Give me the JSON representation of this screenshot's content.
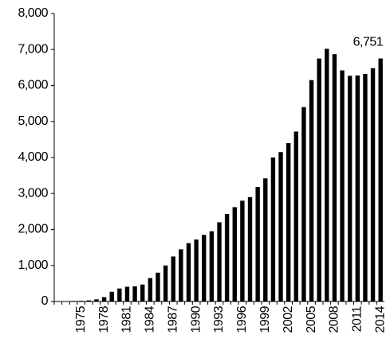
{
  "chart_data": {
    "type": "bar",
    "categories": [
      null,
      null,
      null,
      "1975",
      null,
      null,
      "1978",
      null,
      null,
      "1981",
      null,
      null,
      "1984",
      null,
      null,
      "1987",
      null,
      null,
      "1990",
      null,
      null,
      "1993",
      null,
      null,
      "1996",
      null,
      null,
      "1999",
      null,
      null,
      "2002",
      null,
      null,
      "2005",
      null,
      null,
      "2008",
      null,
      null,
      "2011",
      null,
      null,
      "2014"
    ],
    "values": [
      5,
      10,
      15,
      20,
      30,
      60,
      120,
      270,
      360,
      410,
      420,
      470,
      650,
      800,
      1000,
      1250,
      1450,
      1620,
      1720,
      1850,
      1950,
      2200,
      2430,
      2620,
      2800,
      2900,
      3180,
      3420,
      4000,
      4150,
      4400,
      4720,
      5400,
      6150,
      6750,
      7020,
      6870,
      6420,
      6270,
      6280,
      6320,
      6480,
      6751
    ],
    "value_labels": [
      null,
      null,
      null,
      null,
      null,
      null,
      null,
      null,
      null,
      null,
      null,
      null,
      null,
      null,
      null,
      null,
      null,
      null,
      null,
      null,
      null,
      null,
      null,
      null,
      null,
      null,
      null,
      null,
      null,
      null,
      null,
      null,
      null,
      null,
      null,
      null,
      null,
      null,
      null,
      null,
      null,
      null,
      "6,751"
    ],
    "color": "#000000",
    "ylim": [
      0,
      8000
    ],
    "yticks": [
      0,
      {
        "value": 1000,
        "label": "1,000"
      },
      {
        "value": 2000,
        "label": "2,000"
      },
      {
        "value": 3000,
        "label": "3,000"
      },
      {
        "value": 4000,
        "label": "4,000"
      },
      {
        "value": 5000,
        "label": "5,000"
      },
      {
        "value": 6000,
        "label": "6,000"
      },
      {
        "value": 7000,
        "label": "7,000"
      },
      {
        "value": 8000,
        "label": "8,000"
      }
    ],
    "grid": false
  }
}
